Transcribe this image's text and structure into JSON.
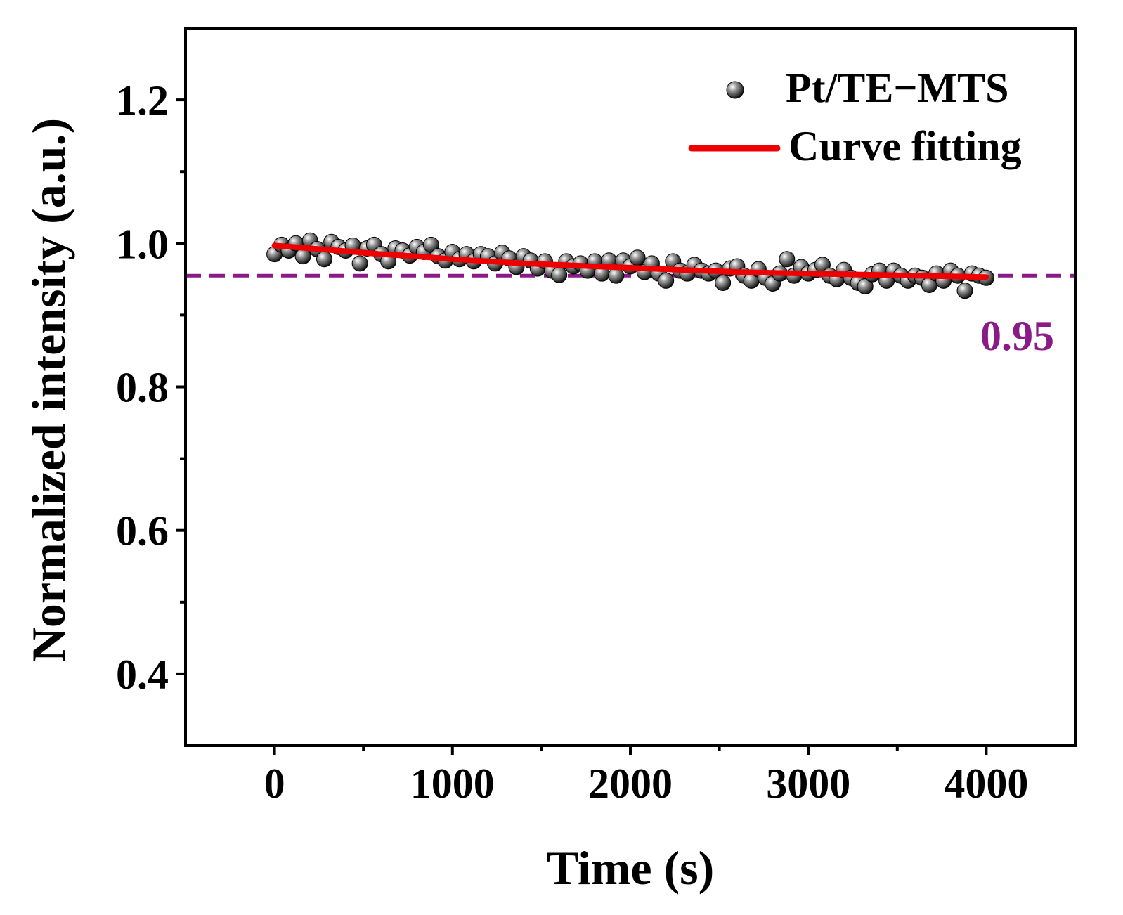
{
  "chart_data": {
    "type": "scatter",
    "xlabel": "Time (s)",
    "ylabel": "Normalized intensity (a.u.)",
    "xlim": [
      -500,
      4500
    ],
    "ylim": [
      0.3,
      1.3
    ],
    "x_ticks": [
      0,
      1000,
      2000,
      3000,
      4000
    ],
    "x_tick_labels": [
      "0",
      "1000",
      "2000",
      "3000",
      "4000"
    ],
    "y_ticks": [
      0.4,
      0.6,
      0.8,
      1.0,
      1.2
    ],
    "y_tick_labels": [
      "0.4",
      "0.6",
      "0.8",
      "1.0",
      "1.2"
    ],
    "legend_position": "top-right",
    "series": [
      {
        "name": "Pt/TE−MTS",
        "kind": "scatter",
        "color": "#1a1a1a",
        "x": [
          0,
          40,
          80,
          120,
          160,
          200,
          240,
          280,
          320,
          360,
          400,
          440,
          480,
          520,
          560,
          600,
          640,
          680,
          720,
          760,
          800,
          840,
          880,
          920,
          960,
          1000,
          1040,
          1080,
          1120,
          1160,
          1200,
          1240,
          1280,
          1320,
          1360,
          1400,
          1440,
          1480,
          1520,
          1560,
          1600,
          1640,
          1680,
          1720,
          1760,
          1800,
          1840,
          1880,
          1920,
          1960,
          2000,
          2040,
          2080,
          2120,
          2160,
          2200,
          2240,
          2280,
          2320,
          2360,
          2400,
          2440,
          2480,
          2520,
          2560,
          2600,
          2640,
          2680,
          2720,
          2760,
          2800,
          2840,
          2880,
          2920,
          2960,
          3000,
          3040,
          3080,
          3120,
          3160,
          3200,
          3240,
          3280,
          3320,
          3360,
          3400,
          3440,
          3480,
          3520,
          3560,
          3600,
          3640,
          3680,
          3720,
          3760,
          3800,
          3840,
          3880,
          3920,
          3960,
          4000
        ],
        "y": [
          0.985,
          0.998,
          0.99,
          1.0,
          0.982,
          1.004,
          0.992,
          0.978,
          1.002,
          0.995,
          0.99,
          0.997,
          0.972,
          0.993,
          0.998,
          0.985,
          0.975,
          0.993,
          0.99,
          0.983,
          0.995,
          0.988,
          0.998,
          0.982,
          0.976,
          0.988,
          0.978,
          0.985,
          0.975,
          0.985,
          0.982,
          0.972,
          0.987,
          0.979,
          0.967,
          0.982,
          0.976,
          0.965,
          0.975,
          0.962,
          0.956,
          0.975,
          0.968,
          0.972,
          0.962,
          0.975,
          0.958,
          0.976,
          0.955,
          0.976,
          0.968,
          0.98,
          0.96,
          0.972,
          0.958,
          0.948,
          0.975,
          0.962,
          0.958,
          0.97,
          0.962,
          0.958,
          0.962,
          0.945,
          0.965,
          0.968,
          0.955,
          0.948,
          0.964,
          0.952,
          0.944,
          0.958,
          0.978,
          0.955,
          0.967,
          0.958,
          0.963,
          0.97,
          0.955,
          0.95,
          0.963,
          0.952,
          0.945,
          0.94,
          0.957,
          0.962,
          0.948,
          0.962,
          0.955,
          0.948,
          0.955,
          0.952,
          0.942,
          0.958,
          0.948,
          0.962,
          0.955,
          0.934,
          0.958,
          0.955,
          0.952
        ]
      },
      {
        "name": "Curve fitting",
        "kind": "line",
        "color": "#ee0000",
        "x": [
          0,
          200,
          400,
          600,
          800,
          1000,
          1200,
          1400,
          1600,
          1800,
          2000,
          2200,
          2400,
          2600,
          2800,
          3000,
          3200,
          3400,
          3600,
          3800,
          4000
        ],
        "y": [
          0.997,
          0.993,
          0.989,
          0.985,
          0.982,
          0.978,
          0.975,
          0.972,
          0.97,
          0.968,
          0.966,
          0.964,
          0.962,
          0.96,
          0.959,
          0.958,
          0.957,
          0.956,
          0.955,
          0.954,
          0.953
        ]
      }
    ],
    "reference_line": {
      "y": 0.955,
      "label": "0.95",
      "color": "#8b1a89",
      "style": "dashed"
    }
  }
}
